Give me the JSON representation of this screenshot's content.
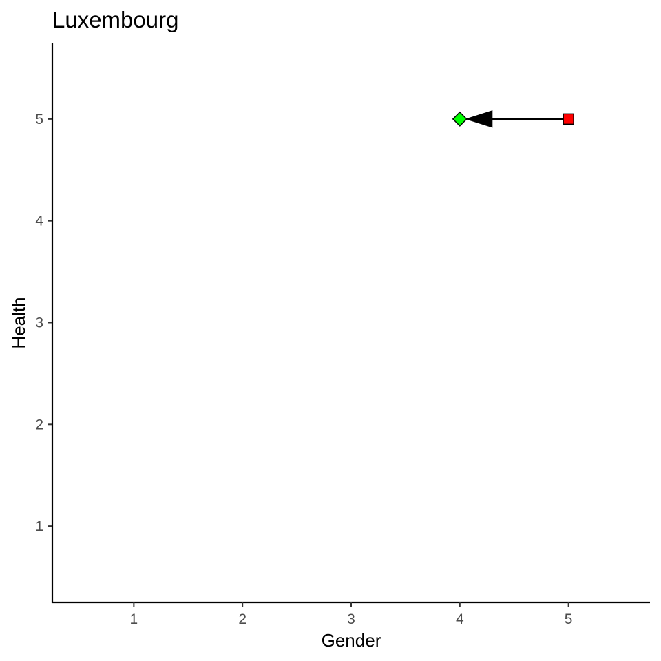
{
  "chart_data": {
    "type": "scatter",
    "title": "Luxembourg",
    "xlabel": "Gender",
    "ylabel": "Health",
    "xlim": [
      0.25,
      5.75
    ],
    "ylim": [
      0.25,
      5.75
    ],
    "xticks": [
      1,
      2,
      3,
      4,
      5
    ],
    "yticks": [
      1,
      2,
      3,
      4,
      5
    ],
    "grid": false,
    "points": [
      {
        "x": 5,
        "y": 5,
        "shape": "square",
        "fill": "#ff0000"
      },
      {
        "x": 4,
        "y": 5,
        "shape": "diamond",
        "fill": "#00ff00"
      }
    ],
    "arrows": [
      {
        "from": {
          "x": 5,
          "y": 5
        },
        "to": {
          "x": 4,
          "y": 5
        },
        "color": "#000000"
      }
    ]
  }
}
